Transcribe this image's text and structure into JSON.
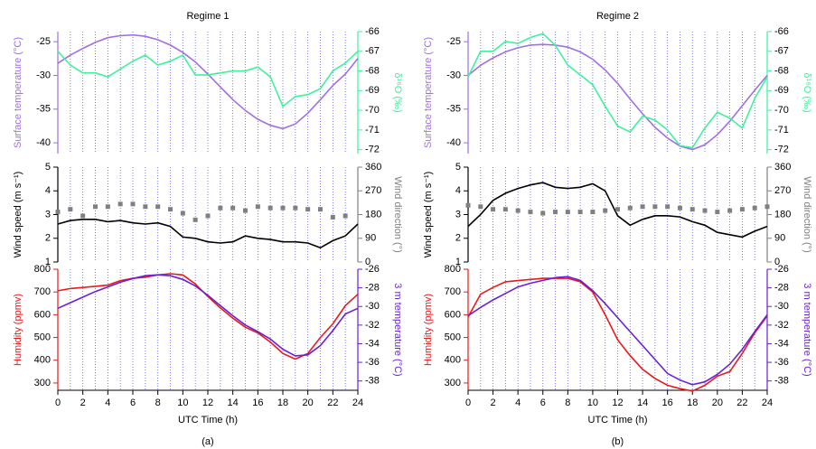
{
  "chart_data": [
    {
      "type": "line",
      "title": "Regime 1",
      "ylabel": "Surface temperature (°C)",
      "y2label": "δ¹⁸O (‰)",
      "x": [
        0,
        1,
        2,
        3,
        4,
        5,
        6,
        7,
        8,
        9,
        10,
        11,
        12,
        13,
        14,
        15,
        16,
        17,
        18,
        19,
        20,
        21,
        22,
        23,
        24
      ],
      "xlim": [
        0,
        24
      ],
      "grid": true,
      "ylim": [
        -41.6,
        -23.5
      ],
      "yticks": [
        -25,
        -30,
        -35,
        -40
      ],
      "y2lim": [
        -72.2,
        -66
      ],
      "y2ticks": [
        -66,
        -67,
        -68,
        -69,
        -70,
        -71,
        -72
      ],
      "series": [
        {
          "color": "#a070e0",
          "axis": "y",
          "values": [
            -28.2,
            -27,
            -26,
            -25.1,
            -24.4,
            -24.1,
            -24,
            -24.2,
            -24.7,
            -25.5,
            -26.6,
            -28,
            -29.8,
            -31.7,
            -33.6,
            -35.2,
            -36.5,
            -37.4,
            -37.9,
            -37.2,
            -35.6,
            -33.6,
            -31.5,
            -29.8,
            -27.5
          ]
        },
        {
          "color": "#3ef29c",
          "axis": "y2",
          "values": [
            -67,
            -67.7,
            -68.1,
            -68.1,
            -68.3,
            -67.9,
            -67.5,
            -67.2,
            -67.7,
            -67.5,
            -67.2,
            -68.2,
            -68.2,
            -68.1,
            -68,
            -68,
            -67.8,
            -68.3,
            -69.8,
            -69.3,
            -69.2,
            -68.9,
            -68,
            -67.6,
            -67
          ]
        }
      ]
    },
    {
      "type": "line",
      "ylabel": "Wind speed (m s⁻¹)",
      "y2label": "Wind direction (°)",
      "x": [
        0,
        1,
        2,
        3,
        4,
        5,
        6,
        7,
        8,
        9,
        10,
        11,
        12,
        13,
        14,
        15,
        16,
        17,
        18,
        19,
        20,
        21,
        22,
        23,
        24
      ],
      "xlim": [
        0,
        24
      ],
      "grid": true,
      "ylim": [
        1,
        5
      ],
      "yticks": [
        1,
        2,
        3,
        4,
        5
      ],
      "y2lim": [
        0,
        360
      ],
      "y2ticks": [
        0,
        90,
        180,
        270,
        360
      ],
      "series": [
        {
          "color": "#000000",
          "axis": "y",
          "values": [
            2.6,
            2.75,
            2.8,
            2.8,
            2.7,
            2.75,
            2.65,
            2.6,
            2.65,
            2.5,
            2.05,
            2,
            1.85,
            1.8,
            1.85,
            2.1,
            2,
            1.95,
            1.85,
            1.85,
            1.8,
            1.6,
            1.9,
            2.1,
            2.6
          ]
        },
        {
          "color": "#808080",
          "axis": "y2",
          "mode": "markers",
          "values": [
            190,
            200,
            175,
            210,
            210,
            220,
            220,
            210,
            210,
            200,
            185,
            160,
            175,
            205,
            205,
            195,
            210,
            205,
            205,
            205,
            200,
            200,
            170,
            175,
            null
          ]
        }
      ]
    },
    {
      "type": "line",
      "ylabel": "Humidity (ppmv)",
      "y2label": "3 m temperature (°C)",
      "xlabel": "UTC Time (h)",
      "caption": "(a)",
      "x": [
        0,
        1,
        2,
        3,
        4,
        5,
        6,
        7,
        8,
        9,
        10,
        11,
        12,
        13,
        14,
        15,
        16,
        17,
        18,
        19,
        20,
        21,
        22,
        23,
        24
      ],
      "xlim": [
        0,
        24
      ],
      "grid": true,
      "xticks": [
        0,
        2,
        4,
        6,
        8,
        10,
        12,
        14,
        16,
        18,
        20,
        22,
        24
      ],
      "ylim": [
        268,
        800
      ],
      "yticks": [
        300,
        400,
        500,
        600,
        700,
        800
      ],
      "y2lim": [
        -39,
        -26
      ],
      "y2ticks": [
        -26,
        -28,
        -30,
        -32,
        -34,
        -36,
        -38
      ],
      "series": [
        {
          "color": "#e8191c",
          "axis": "y",
          "values": [
            705,
            715,
            720,
            725,
            730,
            750,
            760,
            765,
            775,
            780,
            775,
            735,
            680,
            630,
            585,
            545,
            520,
            480,
            430,
            405,
            430,
            500,
            560,
            640,
            690
          ]
        },
        {
          "color": "#6a1fd8",
          "axis": "y2",
          "values": [
            -30.2,
            -29.6,
            -29,
            -28.4,
            -27.9,
            -27.4,
            -27,
            -26.7,
            -26.6,
            -26.7,
            -27.1,
            -27.8,
            -28.8,
            -29.9,
            -31,
            -32,
            -32.7,
            -33.5,
            -34.6,
            -35.3,
            -35.2,
            -34.2,
            -32.6,
            -30.8,
            -30.2
          ]
        }
      ]
    },
    {
      "type": "line",
      "title": "Regime 2",
      "ylabel": "Surface temperature (°C)",
      "y2label": "δ¹⁸O (‰)",
      "x": [
        0,
        1,
        2,
        3,
        4,
        5,
        6,
        7,
        8,
        9,
        10,
        11,
        12,
        13,
        14,
        15,
        16,
        17,
        18,
        19,
        20,
        21,
        22,
        23,
        24
      ],
      "xlim": [
        0,
        24
      ],
      "grid": true,
      "ylim": [
        -41.6,
        -23.5
      ],
      "yticks": [
        -25,
        -30,
        -35,
        -40
      ],
      "y2lim": [
        -72.2,
        -66
      ],
      "y2ticks": [
        -66,
        -67,
        -68,
        -69,
        -70,
        -71,
        -72
      ],
      "series": [
        {
          "color": "#a070e0",
          "axis": "y",
          "values": [
            -30,
            -28.5,
            -27.4,
            -26.5,
            -25.9,
            -25.5,
            -25.4,
            -25.5,
            -25.8,
            -26.5,
            -27.6,
            -29.2,
            -31.2,
            -33.5,
            -35.7,
            -37.7,
            -39.3,
            -40.5,
            -41,
            -40.3,
            -38.8,
            -36.8,
            -34.5,
            -32.2,
            -30
          ]
        },
        {
          "color": "#3ef29c",
          "axis": "y2",
          "values": [
            -68.3,
            -67,
            -67,
            -66.5,
            -66.6,
            -66.3,
            -66.1,
            -66.7,
            -67.7,
            -68.2,
            -68.7,
            -69.8,
            -70.8,
            -71.1,
            -70.3,
            -70.5,
            -71,
            -71.8,
            -71.9,
            -70.9,
            -70.1,
            -70.4,
            -70.9,
            -69.4,
            -68.3
          ]
        }
      ]
    },
    {
      "type": "line",
      "ylabel": "Wind speed (m s⁻¹)",
      "y2label": "Wind direction (°)",
      "x": [
        0,
        1,
        2,
        3,
        4,
        5,
        6,
        7,
        8,
        9,
        10,
        11,
        12,
        13,
        14,
        15,
        16,
        17,
        18,
        19,
        20,
        21,
        22,
        23,
        24
      ],
      "xlim": [
        0,
        24
      ],
      "grid": true,
      "ylim": [
        1,
        5
      ],
      "yticks": [
        1,
        2,
        3,
        4,
        5
      ],
      "y2lim": [
        0,
        360
      ],
      "y2ticks": [
        0,
        90,
        180,
        270,
        360
      ],
      "series": [
        {
          "color": "#000000",
          "axis": "y",
          "values": [
            2.5,
            3,
            3.6,
            3.9,
            4.1,
            4.25,
            4.35,
            4.15,
            4.1,
            4.15,
            4.3,
            4,
            2.95,
            2.55,
            2.8,
            2.95,
            2.95,
            2.9,
            2.7,
            2.55,
            2.25,
            2.15,
            2.05,
            2.3,
            2.5
          ]
        },
        {
          "color": "#808080",
          "axis": "y2",
          "mode": "markers",
          "values": [
            215,
            210,
            200,
            200,
            195,
            190,
            185,
            190,
            190,
            190,
            190,
            195,
            200,
            205,
            210,
            210,
            210,
            205,
            200,
            195,
            190,
            195,
            200,
            205,
            210
          ]
        }
      ]
    },
    {
      "type": "line",
      "ylabel": "Humidity (ppmv)",
      "y2label": "3 m temperature (°C)",
      "xlabel": "UTC Time (h)",
      "caption": "(b)",
      "x": [
        0,
        1,
        2,
        3,
        4,
        5,
        6,
        7,
        8,
        9,
        10,
        11,
        12,
        13,
        14,
        15,
        16,
        17,
        18,
        19,
        20,
        21,
        22,
        23,
        24
      ],
      "xlim": [
        0,
        24
      ],
      "grid": true,
      "xticks": [
        0,
        2,
        4,
        6,
        8,
        10,
        12,
        14,
        16,
        18,
        20,
        22,
        24
      ],
      "ylim": [
        268,
        800
      ],
      "yticks": [
        300,
        400,
        500,
        600,
        700,
        800
      ],
      "y2lim": [
        -39,
        -26
      ],
      "y2ticks": [
        -26,
        -28,
        -30,
        -32,
        -34,
        -36,
        -38
      ],
      "series": [
        {
          "color": "#e8191c",
          "axis": "y",
          "values": [
            590,
            690,
            720,
            745,
            750,
            755,
            760,
            760,
            760,
            745,
            700,
            600,
            490,
            420,
            360,
            320,
            290,
            275,
            265,
            290,
            330,
            350,
            430,
            520,
            595
          ]
        },
        {
          "color": "#6a1fd8",
          "axis": "y2",
          "values": [
            -31,
            -30.1,
            -29.3,
            -28.6,
            -27.9,
            -27.5,
            -27.2,
            -26.9,
            -26.8,
            -27.2,
            -28.3,
            -29.7,
            -31.2,
            -32.7,
            -34.2,
            -35.7,
            -37.2,
            -37.9,
            -38.4,
            -38.1,
            -37.3,
            -36.2,
            -34.6,
            -32.7,
            -30.9
          ]
        }
      ]
    }
  ]
}
